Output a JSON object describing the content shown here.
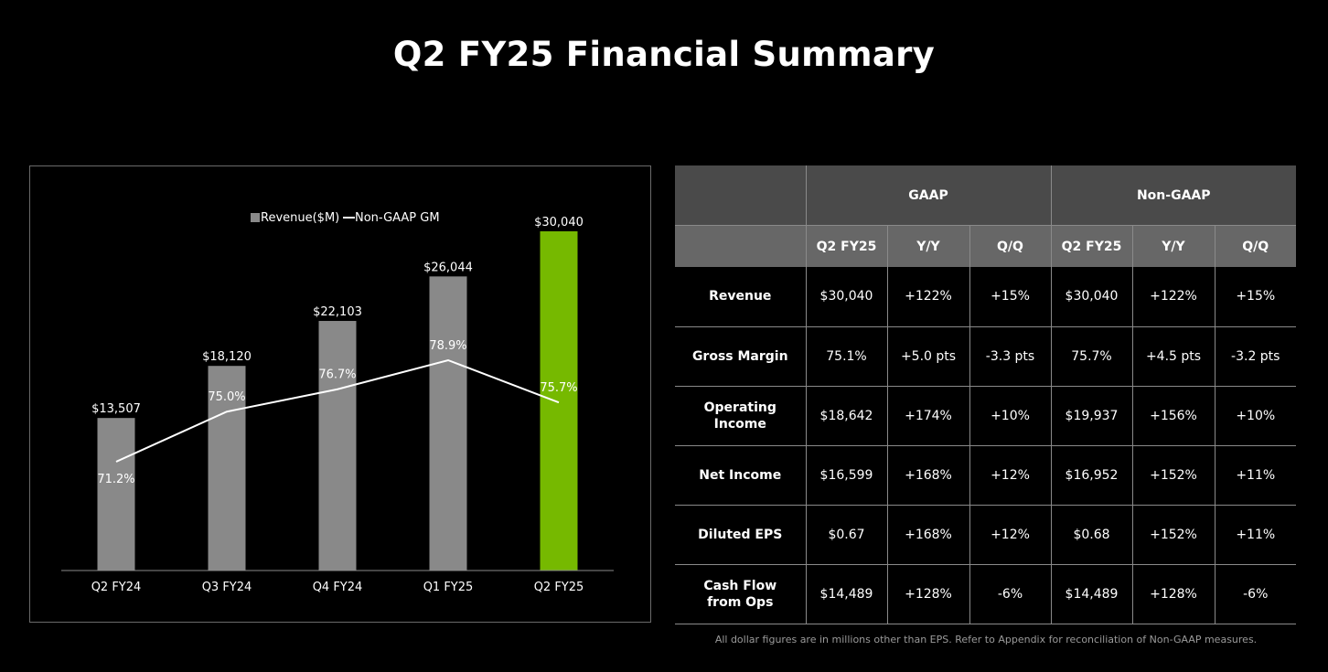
{
  "title": "Q2 FY25 Financial Summary",
  "chart_data": {
    "type": "bar",
    "categories": [
      "Q2 FY24",
      "Q3 FY24",
      "Q4 FY24",
      "Q1 FY25",
      "Q2 FY25"
    ],
    "series": [
      {
        "name": "Revenue($M)",
        "kind": "bar",
        "values": [
          13507,
          18120,
          22103,
          26044,
          30040
        ],
        "labels": [
          "$13,507",
          "$18,120",
          "$22,103",
          "$26,044",
          "$30,040"
        ],
        "color": "#898989",
        "highlight_color": "#76b900",
        "highlight_index": 4
      },
      {
        "name": "Non-GAAP GM",
        "kind": "line",
        "values": [
          71.2,
          75.0,
          76.7,
          78.9,
          75.7
        ],
        "labels": [
          "71.2%",
          "75.0%",
          "76.7%",
          "78.9%",
          "75.7%"
        ],
        "color": "#ffffff"
      }
    ],
    "legend_position": "top-center",
    "grid": false
  },
  "table": {
    "group_headers": [
      "GAAP",
      "Non-GAAP"
    ],
    "sub_headers": [
      "Q2 FY25",
      "Y/Y",
      "Q/Q",
      "Q2 FY25",
      "Y/Y",
      "Q/Q"
    ],
    "rows": [
      {
        "label": "Revenue",
        "cells": [
          "$30,040",
          "+122%",
          "+15%",
          "$30,040",
          "+122%",
          "+15%"
        ]
      },
      {
        "label": "Gross Margin",
        "cells": [
          "75.1%",
          "+5.0 pts",
          "-3.3 pts",
          "75.7%",
          "+4.5 pts",
          "-3.2 pts"
        ]
      },
      {
        "label": "Operating\nIncome",
        "cells": [
          "$18,642",
          "+174%",
          "+10%",
          "$19,937",
          "+156%",
          "+10%"
        ]
      },
      {
        "label": "Net Income",
        "cells": [
          "$16,599",
          "+168%",
          "+12%",
          "$16,952",
          "+152%",
          "+11%"
        ]
      },
      {
        "label": "Diluted EPS",
        "cells": [
          "$0.67",
          "+168%",
          "+12%",
          "$0.68",
          "+152%",
          "+11%"
        ]
      },
      {
        "label": "Cash Flow\nfrom Ops",
        "cells": [
          "$14,489",
          "+128%",
          "-6%",
          "$14,489",
          "+128%",
          "-6%"
        ]
      }
    ]
  },
  "footnote": "All dollar figures are in millions other than EPS. Refer to Appendix for reconciliation of Non-GAAP measures."
}
